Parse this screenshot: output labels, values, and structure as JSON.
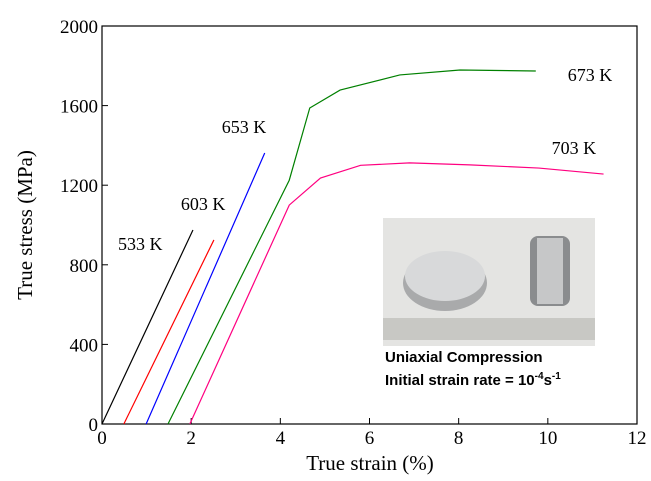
{
  "chart_data": {
    "type": "line",
    "xlabel": "True strain (%)",
    "ylabel": "True stress (MPa)",
    "xlim": [
      0,
      12
    ],
    "xticks": [
      0,
      2,
      4,
      6,
      8,
      10,
      12
    ],
    "ylim": [
      0,
      2000
    ],
    "yticks": [
      0,
      400,
      800,
      1200,
      1600,
      2000
    ],
    "series": [
      {
        "name": "533 K",
        "color": "#000000",
        "x": [
          0,
          2.04
        ],
        "values": [
          0,
          975
        ]
      },
      {
        "name": "603 K",
        "color": "#ff0000",
        "x": [
          0.49,
          2.51
        ],
        "values": [
          0,
          925
        ]
      },
      {
        "name": "653 K",
        "color": "#0000ff",
        "x": [
          0.99,
          3.65
        ],
        "values": [
          0,
          1362
        ]
      },
      {
        "name": "673 K",
        "color": "#008000",
        "x": [
          1.48,
          4.2,
          4.66,
          5.34,
          6.68,
          8.03,
          9.73
        ],
        "values": [
          0,
          1225,
          1588,
          1678,
          1754,
          1779,
          1774
        ]
      },
      {
        "name": "703 K",
        "color": "#ff0080",
        "x": [
          1.97,
          4.2,
          4.9,
          5.8,
          6.9,
          8.25,
          9.8,
          11.25
        ],
        "values": [
          0,
          1100,
          1236,
          1300,
          1312,
          1302,
          1286,
          1256
        ]
      }
    ],
    "inset_title": "Uniaxial Compression",
    "inset_rate": [
      "Initial strain rate = 10",
      "-4",
      "s",
      "-1"
    ]
  }
}
